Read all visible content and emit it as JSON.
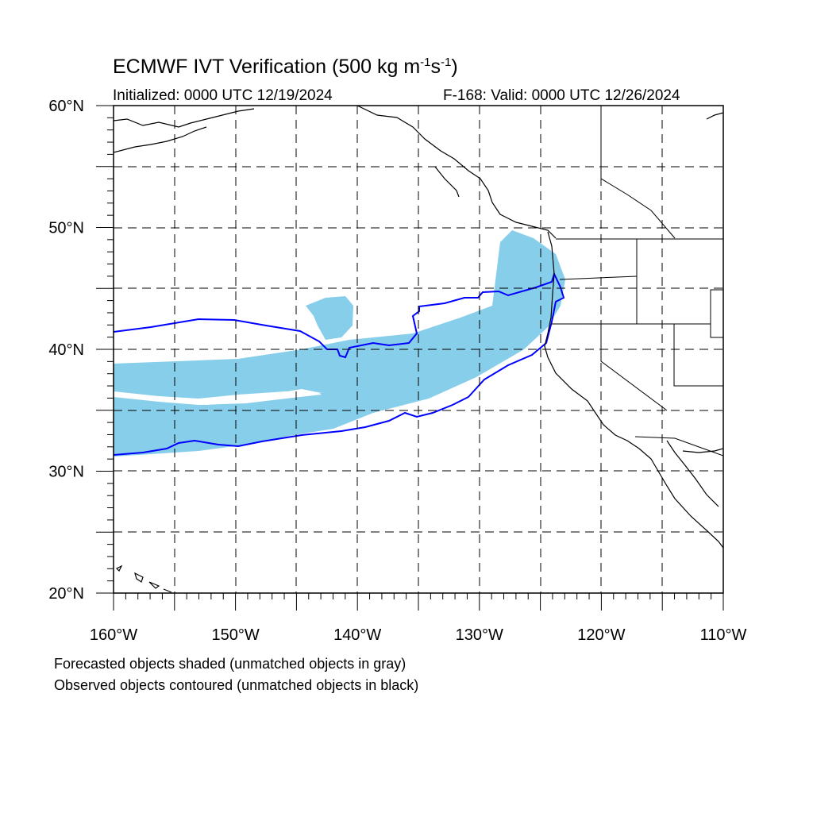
{
  "header": {
    "title_main": "ECMWF IVT Verification (500 kg m",
    "title_exp1": "-1",
    "title_mid": "s",
    "title_exp2": "-1",
    "title_end": ")",
    "initialized": "Initialized: 0000 UTC 12/19/2024",
    "valid": "F-168: Valid: 0000 UTC 12/26/2024"
  },
  "axes": {
    "lat_labels": [
      "60°N",
      "50°N",
      "40°N",
      "30°N",
      "20°N"
    ],
    "lon_labels": [
      "160°W",
      "150°W",
      "140°W",
      "130°W",
      "120°W",
      "110°W"
    ],
    "lat_range": [
      20,
      60
    ],
    "lon_range": [
      -160,
      -110
    ]
  },
  "legend": {
    "forecast_note": "Forecasted objects shaded (unmatched objects in gray)",
    "observed_note": "Observed objects contoured (unmatched objects in black)"
  },
  "colors": {
    "forecast_shade": "#87ceeb",
    "observed_contour": "#0000ff",
    "coastline": "#000000",
    "gridline": "#000000"
  }
}
